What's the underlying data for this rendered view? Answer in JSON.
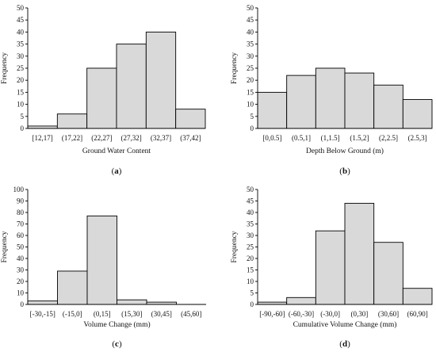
{
  "chart_data": [
    {
      "type": "bar",
      "panel_label": "a",
      "categories": [
        "[12,17]",
        "(17,22]",
        "(22,27]",
        "(27,32]",
        "(32,37]",
        "(37,42]"
      ],
      "values": [
        1,
        6,
        25,
        35,
        40,
        8
      ],
      "xlabel": "Ground Water Content",
      "ylabel": "Frequency",
      "ylim": [
        0,
        50
      ],
      "yticks": [
        0,
        5,
        10,
        15,
        20,
        25,
        30,
        35,
        40,
        45,
        50
      ],
      "grid": false
    },
    {
      "type": "bar",
      "panel_label": "b",
      "categories": [
        "[0,0.5]",
        "(0.5,1]",
        "(1,1.5]",
        "(1.5,2]",
        "(2,2.5]",
        "(2.5,3]"
      ],
      "values": [
        15,
        22,
        25,
        23,
        18,
        12
      ],
      "xlabel": "Depth Below Ground (m)",
      "ylabel": "Frequency",
      "ylim": [
        0,
        50
      ],
      "yticks": [
        0,
        5,
        10,
        15,
        20,
        25,
        30,
        35,
        40,
        45,
        50
      ],
      "grid": false
    },
    {
      "type": "bar",
      "panel_label": "c",
      "categories": [
        "[-30,-15]",
        "(-15,0]",
        "(0,15]",
        "(15,30]",
        "(30,45]",
        "(45,60]"
      ],
      "values": [
        3,
        29,
        77,
        4,
        2,
        0
      ],
      "xlabel": "Volume Change (mm)",
      "ylabel": "Frequency",
      "ylim": [
        0,
        100
      ],
      "yticks": [
        0,
        10,
        20,
        30,
        40,
        50,
        60,
        70,
        80,
        90,
        100
      ],
      "grid": false
    },
    {
      "type": "bar",
      "panel_label": "d",
      "categories": [
        "[-90,-60]",
        "(-60,-30]",
        "(-30,0]",
        "(0,30]",
        "(30,60]",
        "(60,90]"
      ],
      "values": [
        1,
        3,
        32,
        44,
        27,
        7
      ],
      "xlabel": "Cumulative Volume Change (mm)",
      "ylabel": "Frequency",
      "ylim": [
        0,
        50
      ],
      "yticks": [
        0,
        5,
        10,
        15,
        20,
        25,
        30,
        35,
        40,
        45,
        50
      ],
      "grid": false
    }
  ]
}
